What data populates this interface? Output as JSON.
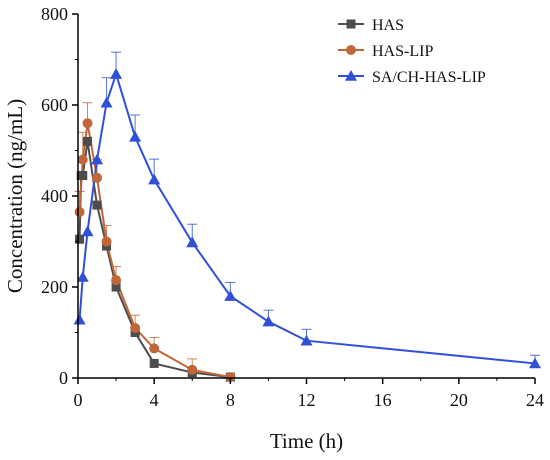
{
  "chart_data": {
    "type": "line",
    "xlabel": "Time (h)",
    "ylabel": "Concentration (ng/mL)",
    "xlim": [
      0,
      24
    ],
    "ylim": [
      0,
      800
    ],
    "xticks": [
      "0",
      "4",
      "8",
      "12",
      "16",
      "20",
      "24"
    ],
    "yticks": [
      "0",
      "200",
      "400",
      "600",
      "800"
    ],
    "grid": false,
    "legend": "top-right",
    "series": [
      {
        "name": "HAS",
        "color": "#4d4d4d",
        "marker": "square",
        "x": [
          0.083,
          0.167,
          0.25,
          0.5,
          1,
          1.5,
          2,
          3,
          4,
          6,
          8
        ],
        "y": [
          305,
          445,
          445,
          520,
          380,
          290,
          200,
          100,
          32,
          12,
          2
        ],
        "error": [
          0,
          0,
          0,
          0,
          0,
          0,
          0,
          0,
          0,
          0,
          0
        ]
      },
      {
        "name": "HAS-LIP",
        "color": "#c0673a",
        "marker": "circle",
        "x": [
          0.083,
          0.25,
          0.5,
          1,
          1.5,
          2,
          3,
          4,
          6,
          8
        ],
        "y": [
          365,
          480,
          560,
          440,
          300,
          215,
          110,
          65,
          18,
          2
        ],
        "error": [
          45,
          60,
          45,
          40,
          35,
          30,
          28,
          24,
          24,
          3
        ]
      },
      {
        "name": "SA/CH-HAS-LIP",
        "color": "#3050d8",
        "marker": "triangle",
        "x": [
          0.083,
          0.25,
          0.5,
          1,
          1.5,
          2,
          3,
          4,
          6,
          8,
          10,
          12,
          24
        ],
        "y": [
          128,
          222,
          322,
          480,
          605,
          668,
          530,
          436,
          298,
          180,
          124,
          82,
          32
        ],
        "error": [
          0,
          0,
          0,
          0,
          55,
          48,
          48,
          45,
          40,
          30,
          25,
          25,
          18
        ]
      }
    ]
  }
}
